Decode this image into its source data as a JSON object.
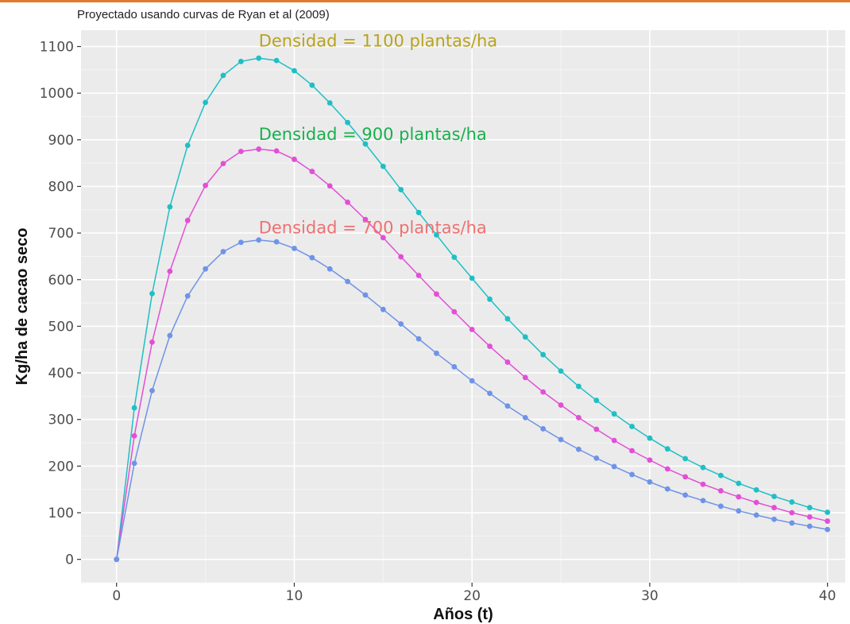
{
  "subtitle": "Proyectado usando curvas de Ryan et al (2009)",
  "chart_data": {
    "type": "line",
    "xlabel": "Años (t)",
    "ylabel": "Kg/ha de cacao seco",
    "xlim": [
      -2,
      41
    ],
    "ylim": [
      -50,
      1135
    ],
    "x_ticks": [
      0,
      10,
      20,
      30,
      40
    ],
    "y_ticks": [
      0,
      100,
      200,
      300,
      400,
      500,
      600,
      700,
      800,
      900,
      1000,
      1100
    ],
    "grid": true,
    "background": "#ebebeb",
    "x": [
      0,
      1,
      2,
      3,
      4,
      5,
      6,
      7,
      8,
      9,
      10,
      11,
      12,
      13,
      14,
      15,
      16,
      17,
      18,
      19,
      20,
      21,
      22,
      23,
      24,
      25,
      26,
      27,
      28,
      29,
      30,
      31,
      32,
      33,
      34,
      35,
      36,
      37,
      38,
      39,
      40
    ],
    "series": [
      {
        "color": "#1fbfc4",
        "values": [
          0,
          325,
          570,
          756,
          888,
          980,
          1038,
          1068,
          1075,
          1070,
          1048,
          1017,
          979,
          937,
          891,
          843,
          793,
          744,
          696,
          648,
          603,
          558,
          516,
          477,
          439,
          404,
          371,
          341,
          312,
          285,
          260,
          237,
          216,
          197,
          180,
          163,
          149,
          135,
          123,
          111,
          101
        ]
      },
      {
        "color": "#e24fd6",
        "values": [
          0,
          265,
          466,
          618,
          727,
          802,
          849,
          875,
          880,
          876,
          858,
          832,
          801,
          766,
          729,
          690,
          649,
          609,
          569,
          531,
          493,
          457,
          423,
          390,
          359,
          331,
          304,
          279,
          255,
          233,
          213,
          194,
          177,
          161,
          147,
          134,
          122,
          111,
          100,
          91,
          82
        ]
      },
      {
        "color": "#6f93e8",
        "values": [
          0,
          206,
          362,
          480,
          565,
          623,
          660,
          680,
          685,
          681,
          667,
          647,
          623,
          596,
          567,
          536,
          505,
          473,
          442,
          413,
          383,
          356,
          329,
          304,
          280,
          257,
          236,
          217,
          199,
          182,
          166,
          151,
          138,
          126,
          114,
          104,
          95,
          86,
          78,
          71,
          64
        ]
      }
    ],
    "annotations": [
      {
        "text": "Densidad = 1100 plantas/ha",
        "x": 8,
        "y": 1110,
        "color": "#b8a31c"
      },
      {
        "text": "Densidad = 900 plantas/ha",
        "x": 8,
        "y": 910,
        "color": "#17b04e"
      },
      {
        "text": "Densidad = 700 plantas/ha",
        "x": 8,
        "y": 710,
        "color": "#f07070"
      }
    ]
  }
}
